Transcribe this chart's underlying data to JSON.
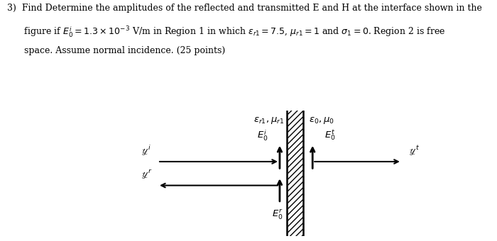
{
  "background_color": "#ffffff",
  "label_left": "$\\varepsilon_{r1}, \\mu_{r1}$",
  "label_right": "$\\varepsilon_0, \\mu_0$",
  "label_Ei": "$E_0^i$",
  "label_Et": "$E_0^t$",
  "label_Er": "$E_0^r$",
  "label_yi": "$\\mathscr{y}^i$",
  "label_yt": "$\\mathscr{y}^t$",
  "label_yr": "$\\mathscr{y}^r$",
  "text_line1": "3)  Find Determine the amplitudes of the reflected and transmitted E and H at the interface shown in the",
  "text_line2": "      figure if $E_0^i = 1.3 \\times 10^{-3}$ V/m in Region 1 in which $\\varepsilon_{r1} = 7.5$, $\\mu_{r1} = 1$ and $\\sigma_1 = 0$. Region 2 is free",
  "text_line3": "      space. Assume normal incidence. (25 points)"
}
